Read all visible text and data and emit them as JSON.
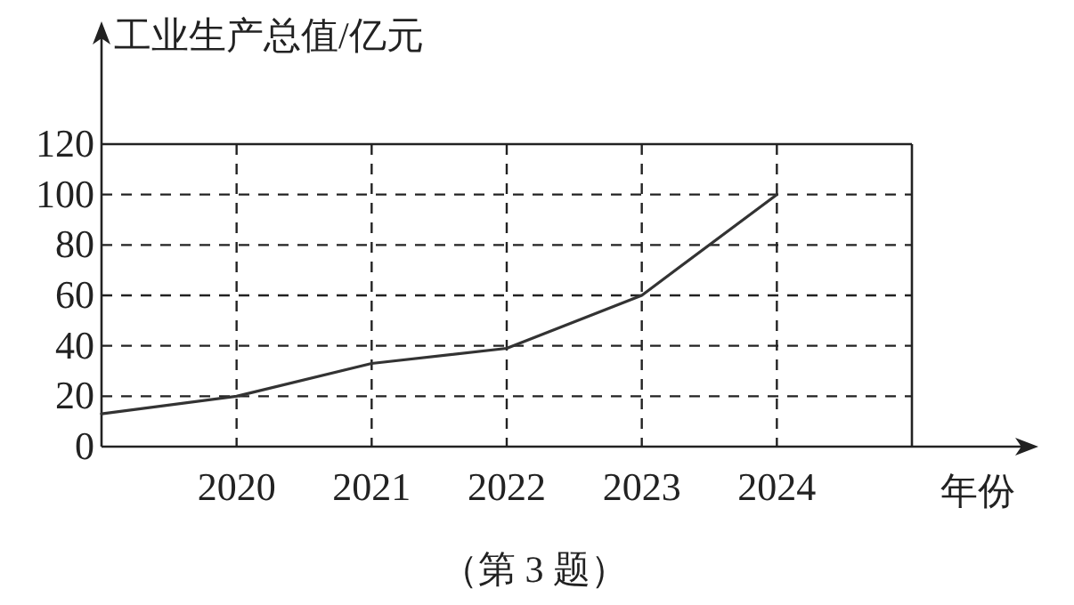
{
  "chart_data": {
    "type": "line",
    "ylabel": "工业生产总值/亿元",
    "xlabel": "年份",
    "annotations": [
      "（第 3 题）"
    ],
    "x": [
      2019,
      2020,
      2021,
      2022,
      2023,
      2024
    ],
    "series": [
      {
        "color": "#333333",
        "values": [
          13,
          20,
          33,
          39,
          60,
          100
        ]
      }
    ],
    "xlim": [
      2019,
      2025
    ],
    "xticks": [
      2020,
      2021,
      2022,
      2023,
      2024
    ],
    "ylim": [
      0,
      120
    ],
    "yticks": [
      0,
      20,
      40,
      60,
      80,
      100,
      120
    ],
    "grid": true,
    "marker": "none",
    "line_style": "solid"
  }
}
